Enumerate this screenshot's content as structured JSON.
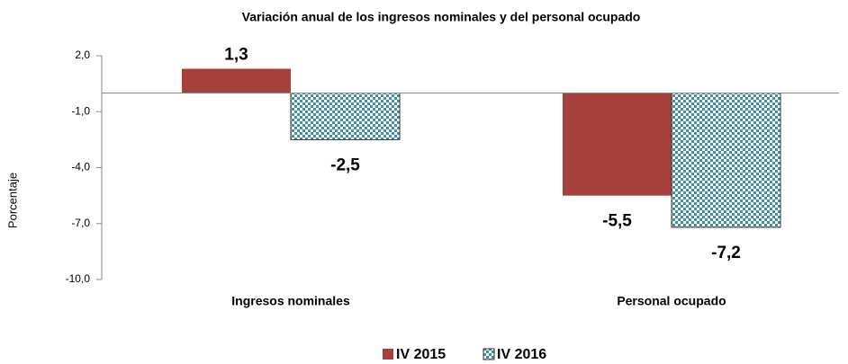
{
  "chart_data": {
    "type": "bar",
    "title": "Variación anual de los ingresos nominales y del personal ocupado",
    "y_label": "Porcentaje",
    "categories": [
      "Ingresos nominales",
      "Personal ocupado"
    ],
    "series": [
      {
        "name": "IV 2015",
        "color": "#a5403d",
        "pattern": false,
        "values": [
          1.3,
          -5.5
        ],
        "value_labels": [
          "1,3",
          "-5,5"
        ]
      },
      {
        "name": "IV 2016",
        "color": "#3f8fa0",
        "pattern": true,
        "values": [
          -2.5,
          -7.2
        ],
        "value_labels": [
          "-2,5",
          "-7,2"
        ]
      }
    ],
    "ylim": [
      -10,
      2
    ],
    "yticks": [
      {
        "value": 2,
        "label": "2,0"
      },
      {
        "value": -1,
        "label": "-1,0"
      },
      {
        "value": -4,
        "label": "-4,0"
      },
      {
        "value": -7,
        "label": "-7,0"
      },
      {
        "value": -10,
        "label": "-10,0"
      }
    ],
    "legend": "bottom"
  }
}
